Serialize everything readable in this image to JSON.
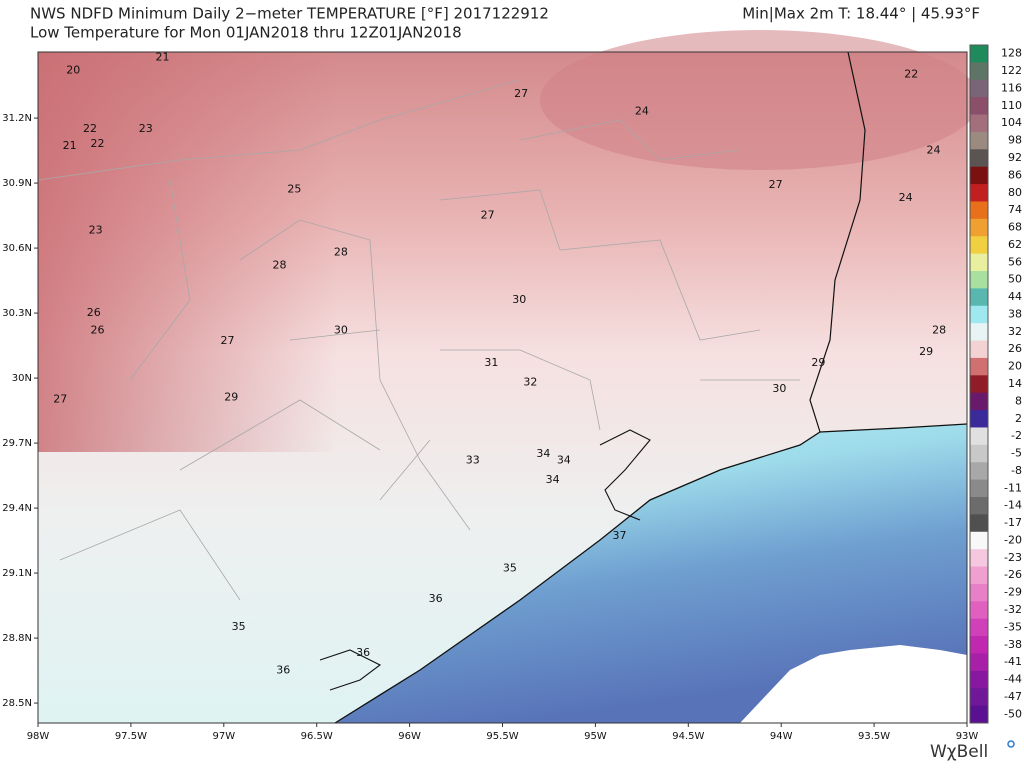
{
  "chart_data": {
    "type": "map",
    "title": "NWS NDFD Minimum Daily 2−meter TEMPERATURE [°F]  2017122912",
    "subtitle": "Low Temperature for Mon 01JAN2018 thru 12Z01JAN2018",
    "header_right": "Min|Max 2m T:  18.44°  | 45.93°F",
    "logo": "WχBell",
    "xlim": [
      -98,
      -93
    ],
    "ylim": [
      28.408,
      31.505
    ],
    "xticks": [
      {
        "value": -98,
        "label": "98W"
      },
      {
        "value": -97.5,
        "label": "97.5W"
      },
      {
        "value": -97,
        "label": "97W"
      },
      {
        "value": -96.5,
        "label": "96.5W"
      },
      {
        "value": -96,
        "label": "96W"
      },
      {
        "value": -95.5,
        "label": "95.5W"
      },
      {
        "value": -95,
        "label": "95W"
      },
      {
        "value": -94.5,
        "label": "94.5W"
      },
      {
        "value": -94,
        "label": "94W"
      },
      {
        "value": -93.5,
        "label": "93.5W"
      },
      {
        "value": -93,
        "label": "93W"
      }
    ],
    "yticks": [
      {
        "value": 31.2,
        "label": "31.2N"
      },
      {
        "value": 30.9,
        "label": "30.9N"
      },
      {
        "value": 30.6,
        "label": "30.6N"
      },
      {
        "value": 30.3,
        "label": "30.3N"
      },
      {
        "value": 30,
        "label": "30N"
      },
      {
        "value": 29.7,
        "label": "29.7N"
      },
      {
        "value": 29.4,
        "label": "29.4N"
      },
      {
        "value": 29.1,
        "label": "29.1N"
      },
      {
        "value": 28.8,
        "label": "28.8N"
      },
      {
        "value": 28.5,
        "label": "28.5N"
      }
    ],
    "stations": {
      "x": [
        -97.81,
        -97.33,
        -95.4,
        -94.75,
        -93.3,
        -97.72,
        -97.42,
        -97.83,
        -97.68,
        -93.18,
        -96.62,
        -94.03,
        -93.33,
        -95.58,
        -97.69,
        -96.37,
        -96.7,
        -95.41,
        -97.7,
        -97.68,
        -96.37,
        -96.98,
        -93.15,
        -93.22,
        -93.8,
        -95.56,
        -95.35,
        -94.01,
        -97.88,
        -96.96,
        -95.66,
        -95.28,
        -95.17,
        -95.23,
        -94.87,
        -95.46,
        -95.86,
        -96.92,
        -96.25,
        -96.68
      ],
      "y": [
        31.42,
        31.48,
        31.31,
        31.23,
        31.4,
        31.15,
        31.15,
        31.07,
        31.08,
        31.05,
        30.87,
        30.89,
        30.83,
        30.75,
        30.68,
        30.58,
        30.52,
        30.36,
        30.3,
        30.22,
        30.22,
        30.17,
        30.22,
        30.12,
        30.07,
        30.07,
        29.98,
        29.95,
        29.9,
        29.91,
        29.62,
        29.65,
        29.62,
        29.53,
        29.27,
        29.12,
        28.98,
        28.85,
        28.73,
        28.65
      ],
      "values": [
        20,
        21,
        27,
        24,
        22,
        22,
        23,
        21,
        22,
        24,
        25,
        27,
        24,
        27,
        23,
        28,
        28,
        30,
        26,
        26,
        30,
        27,
        28,
        29,
        29,
        31,
        32,
        30,
        27,
        29,
        33,
        34,
        34,
        34,
        37,
        35,
        36,
        35,
        36,
        36
      ]
    },
    "colorbar": {
      "ticks": [
        128,
        122,
        116,
        110,
        104,
        98,
        92,
        86,
        80,
        74,
        68,
        62,
        56,
        50,
        44,
        38,
        32,
        26,
        20,
        14,
        8,
        2,
        -2,
        -5,
        -8,
        -11,
        -14,
        -17,
        -20,
        -23,
        -26,
        -29,
        -32,
        -35,
        -38,
        -41,
        -44,
        -47,
        -50
      ],
      "colors": [
        "#1f8a5c",
        "#5d7466",
        "#7a6478",
        "#8c4f6a",
        "#a36f7c",
        "#9a8a80",
        "#5c5452",
        "#7a1010",
        "#c22020",
        "#e8701a",
        "#f0a030",
        "#f0d040",
        "#e8f0a0",
        "#a8e0a0",
        "#58b8b0",
        "#a0e8f0",
        "#e8f4f4",
        "#f2d2d2",
        "#d07070",
        "#901c28",
        "#6a1a6a",
        "#3a2a9a",
        "#e0e0e0",
        "#c8c8c8",
        "#a8a8a8",
        "#8a8a8a",
        "#6c6c6c",
        "#505050",
        "#f8f8f8",
        "#f5c8e0",
        "#f0a0d0",
        "#e880c8",
        "#e060c0",
        "#d040b8",
        "#c028b0",
        "#a820a8",
        "#8818a0",
        "#701898",
        "#5a1090"
      ]
    }
  }
}
